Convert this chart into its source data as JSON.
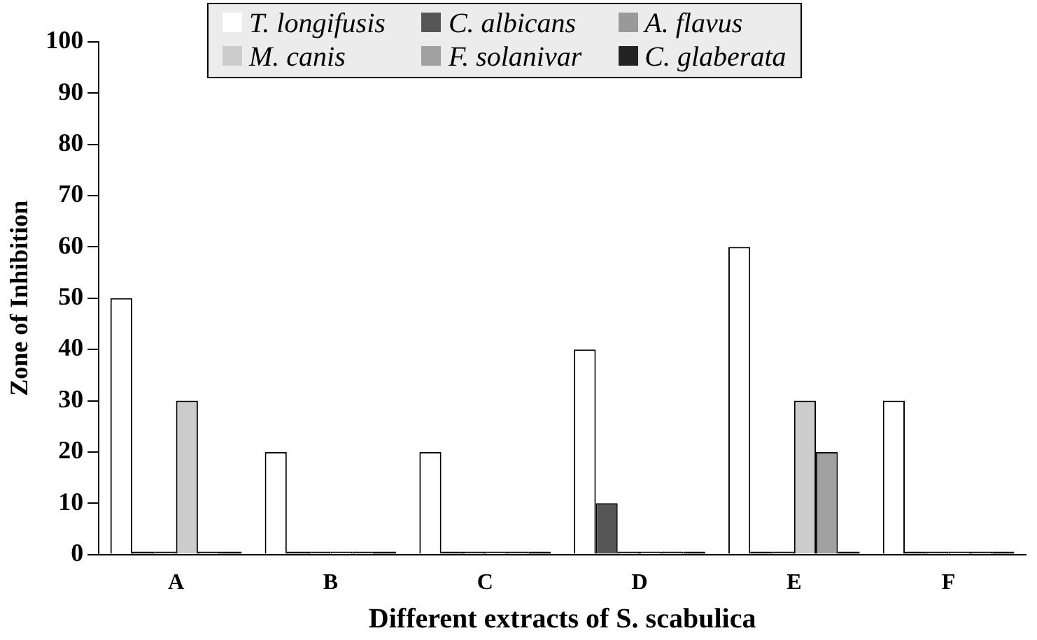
{
  "chart_data": {
    "type": "bar",
    "xlabel": "Different extracts of S. scabulica",
    "ylabel": "Zone of Inhibition",
    "categories": [
      "A",
      "B",
      "C",
      "D",
      "E",
      "F"
    ],
    "series": [
      {
        "name": "T. longifusis",
        "color": "#ffffff",
        "values": [
          50,
          20,
          20,
          40,
          60,
          30
        ]
      },
      {
        "name": "C. albicans",
        "color": "#555555",
        "values": [
          0,
          0,
          0,
          10,
          0,
          0
        ]
      },
      {
        "name": "A. flavus",
        "color": "#999999",
        "values": [
          0,
          0,
          0,
          0,
          0,
          0
        ]
      },
      {
        "name": "M. canis",
        "color": "#cccccc",
        "values": [
          30,
          0,
          0,
          0,
          30,
          0
        ]
      },
      {
        "name": "F. solanivar",
        "color": "#a0a0a0",
        "values": [
          0,
          0,
          0,
          0,
          20,
          0
        ]
      },
      {
        "name": "C. glaberata",
        "color": "#222222",
        "values": [
          0,
          0,
          0,
          0,
          0,
          0
        ]
      }
    ],
    "ylim": [
      0,
      100
    ],
    "yticks": [
      0,
      10,
      20,
      30,
      40,
      50,
      60,
      70,
      80,
      90,
      100
    ],
    "grid": false,
    "legend": "top"
  }
}
